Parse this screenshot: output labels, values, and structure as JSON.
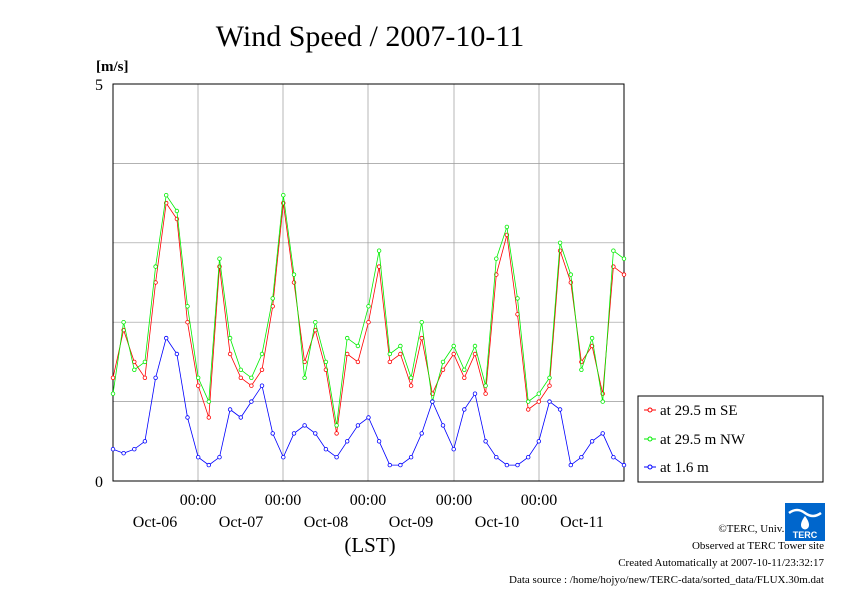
{
  "chart_data": {
    "type": "line",
    "title": "Wind Speed / 2007-10-11",
    "ylabel": "[m/s]",
    "xlabel": "(LST)",
    "ylim": [
      0,
      5
    ],
    "ytick_labels": [
      "5",
      "0"
    ],
    "xtick_time_labels": [
      "00:00",
      "00:00",
      "00:00",
      "00:00",
      "00:00"
    ],
    "xtick_day_labels": [
      "Oct-06",
      "Oct-07",
      "Oct-08",
      "Oct-09",
      "Oct-10",
      "Oct-11"
    ],
    "legend_placement": "right",
    "grid": true,
    "x_hours": [
      0,
      3,
      6,
      9,
      12,
      15,
      18,
      21,
      24,
      27,
      30,
      33,
      36,
      39,
      42,
      45,
      48,
      51,
      54,
      57,
      60,
      63,
      66,
      69,
      72,
      75,
      78,
      81,
      84,
      87,
      90,
      93,
      96,
      99,
      102,
      105,
      108,
      111,
      114,
      117,
      120,
      123,
      126,
      129,
      132,
      135,
      138,
      141,
      144
    ],
    "series": [
      {
        "name": "at 29.5 m SE",
        "color": "#ff0000",
        "values": [
          1.3,
          1.9,
          1.5,
          1.3,
          2.5,
          3.5,
          3.3,
          2.0,
          1.2,
          0.8,
          2.7,
          1.6,
          1.3,
          1.2,
          1.4,
          2.2,
          3.5,
          2.5,
          1.5,
          1.9,
          1.4,
          0.6,
          1.6,
          1.5,
          2.0,
          2.7,
          1.5,
          1.6,
          1.2,
          1.8,
          1.1,
          1.4,
          1.6,
          1.3,
          1.6,
          1.1,
          2.6,
          3.1,
          2.1,
          0.9,
          1.0,
          1.2,
          2.9,
          2.5,
          1.5,
          1.7,
          1.1,
          2.7,
          2.6
        ]
      },
      {
        "name": "at 29.5 m NW",
        "color": "#00ee00",
        "values": [
          1.1,
          2.0,
          1.4,
          1.5,
          2.7,
          3.6,
          3.4,
          2.2,
          1.3,
          1.0,
          2.8,
          1.8,
          1.4,
          1.3,
          1.6,
          2.3,
          3.6,
          2.6,
          1.3,
          2.0,
          1.5,
          0.7,
          1.8,
          1.7,
          2.2,
          2.9,
          1.6,
          1.7,
          1.3,
          2.0,
          1.0,
          1.5,
          1.7,
          1.4,
          1.7,
          1.2,
          2.8,
          3.2,
          2.3,
          1.0,
          1.1,
          1.3,
          3.0,
          2.6,
          1.4,
          1.8,
          1.0,
          2.9,
          2.8
        ]
      },
      {
        "name": "at 1.6 m",
        "color": "#0000ff",
        "values": [
          0.4,
          0.35,
          0.4,
          0.5,
          1.3,
          1.8,
          1.6,
          0.8,
          0.3,
          0.2,
          0.3,
          0.9,
          0.8,
          1.0,
          1.2,
          0.6,
          0.3,
          0.6,
          0.7,
          0.6,
          0.4,
          0.3,
          0.5,
          0.7,
          0.8,
          0.5,
          0.2,
          0.2,
          0.3,
          0.6,
          1.0,
          0.7,
          0.4,
          0.9,
          1.1,
          0.5,
          0.3,
          0.2,
          0.2,
          0.3,
          0.5,
          1.0,
          0.9,
          0.2,
          0.3,
          0.5,
          0.6,
          0.3,
          0.2
        ]
      }
    ]
  },
  "credits": {
    "copyright": "©TERC, Univ. Tsukuba",
    "observed": "Observed at TERC Tower site",
    "created": "Created Automatically at 2007-10-11/23:32:17",
    "source": "Data source : /home/hojyo/new/TERC-data/sorted_data/FLUX.30m.dat"
  },
  "logo": {
    "text": "TERC",
    "color": "#0066cc"
  }
}
